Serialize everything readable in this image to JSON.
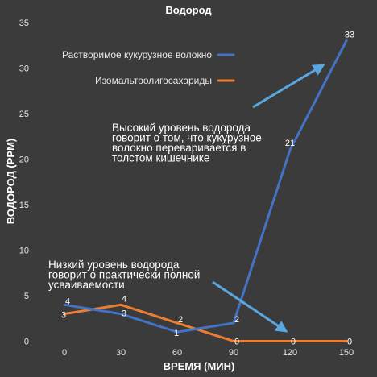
{
  "chart_data": {
    "type": "line",
    "title": "Водород",
    "xlabel": "ВРЕМЯ (МИН)",
    "ylabel": "ВОДОРОД (PPM)",
    "x": [
      0,
      30,
      60,
      90,
      120,
      150
    ],
    "x_tick_labels": [
      "0",
      "30",
      "60",
      "90",
      "120",
      "150"
    ],
    "ylim": [
      0,
      35
    ],
    "y_tick_labels": [
      "0",
      "5",
      "10",
      "15",
      "20",
      "25",
      "30",
      "35"
    ],
    "grid": false,
    "legend_position": "top-left",
    "series": [
      {
        "name": "Растворимое кукурузное волокно",
        "color": "#4472c4",
        "values": [
          4,
          3,
          1,
          2,
          21,
          33
        ],
        "labels": [
          "4",
          "3",
          "1",
          "2",
          "21",
          "33"
        ]
      },
      {
        "name": "Изомальтоолигосахариды",
        "color": "#ed7d31",
        "values": [
          3,
          4,
          2,
          0,
          0,
          0
        ],
        "labels": [
          "3",
          "4",
          "2",
          "0",
          "0",
          "0"
        ]
      }
    ],
    "annotations": [
      {
        "lines": [
          "Высокий уровень водорода",
          "говорит о том, что кукурузное",
          "волокно переваривается в",
          "толстом кишечнике"
        ],
        "arrow_color": "#5aa7e0"
      },
      {
        "lines": [
          "Низкий уровень водорода",
          "говорит о практически полной",
          "усваиваемости"
        ],
        "arrow_color": "#5aa7e0"
      }
    ]
  }
}
